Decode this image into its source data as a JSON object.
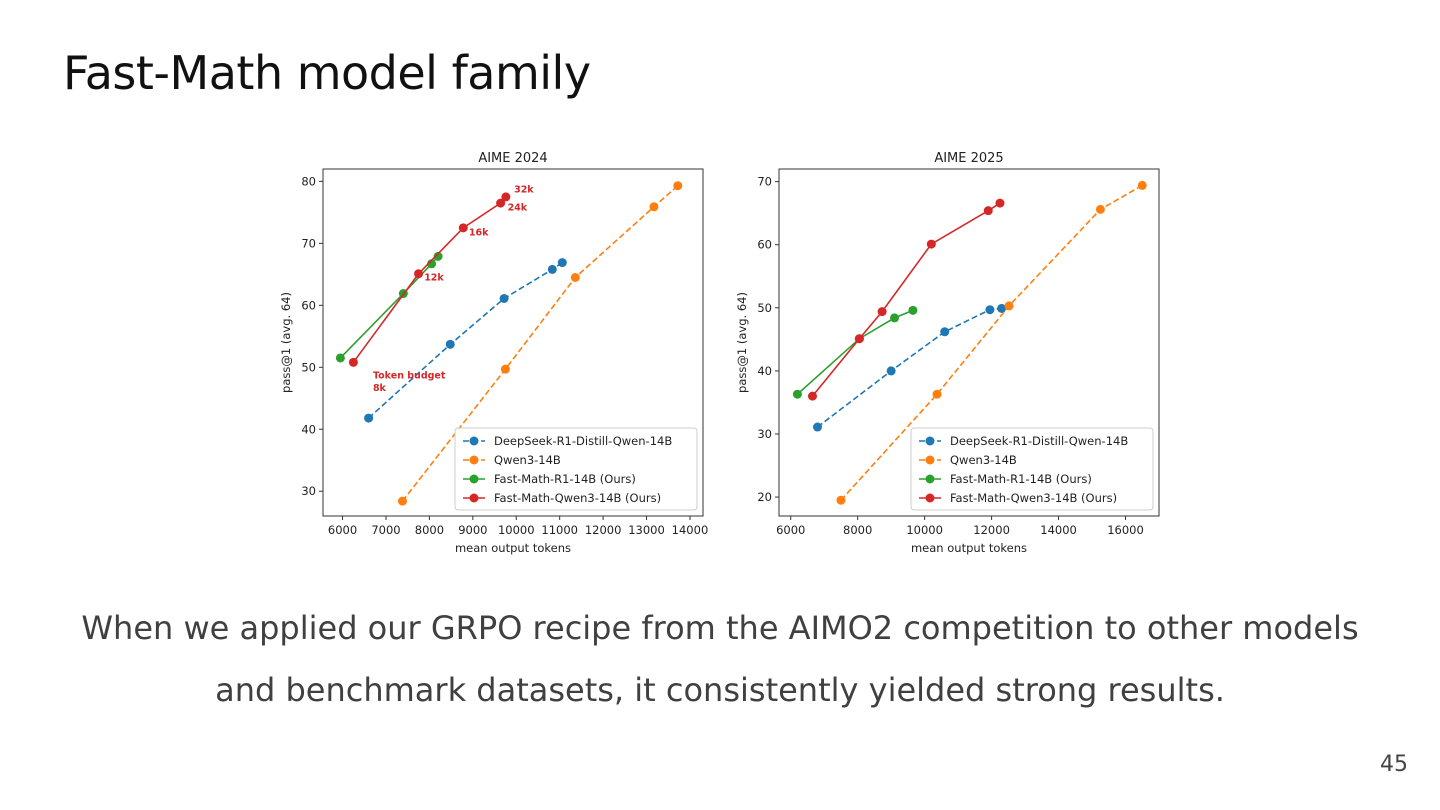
{
  "slide": {
    "title": "Fast-Math model family",
    "caption_lines": [
      "When we applied our GRPO recipe from the AIMO2 competition to other models",
      "and benchmark datasets, it consistently yielded strong results."
    ],
    "page_number": "45"
  },
  "colors": {
    "blue": "#1f77b4",
    "orange": "#ff7f0e",
    "green": "#2ca02c",
    "red": "#d62728"
  },
  "chart_data": [
    {
      "type": "line",
      "title": "AIME 2024",
      "xlabel": "mean output tokens",
      "ylabel": "pass@1 (avg. 64)",
      "xlim": [
        5550,
        14300
      ],
      "ylim": [
        26,
        82
      ],
      "xticks": [
        6000,
        7000,
        8000,
        9000,
        10000,
        11000,
        12000,
        13000,
        14000
      ],
      "yticks": [
        30,
        40,
        50,
        60,
        70,
        80
      ],
      "grid": false,
      "legend": "bottom-right",
      "series": [
        {
          "name": "DeepSeek-R1-Distill-Qwen-14B",
          "color": "blue",
          "style": "dashed",
          "x": [
            6600,
            8480,
            9720,
            10830,
            11060
          ],
          "y": [
            41.8,
            53.7,
            61.1,
            65.8,
            66.9
          ]
        },
        {
          "name": "Qwen3-14B",
          "color": "orange",
          "style": "dashed",
          "x": [
            7380,
            9750,
            11360,
            13170,
            13720
          ],
          "y": [
            28.4,
            49.7,
            64.5,
            75.9,
            79.3
          ]
        },
        {
          "name": "Fast-Math-R1-14B (Ours)",
          "color": "green",
          "style": "solid",
          "x": [
            5950,
            7400,
            8050,
            8200
          ],
          "y": [
            51.5,
            61.9,
            66.7,
            67.9
          ]
        },
        {
          "name": "Fast-Math-Qwen3-14B (Ours)",
          "color": "red",
          "style": "solid",
          "x": [
            6250,
            7750,
            8780,
            9640,
            9760
          ],
          "y": [
            50.8,
            65.1,
            72.5,
            76.5,
            77.5
          ]
        }
      ],
      "annotations": [
        {
          "text": "Token budget",
          "x": 6700,
          "y": 48.2
        },
        {
          "text": "8k",
          "x": 6700,
          "y": 46.2
        },
        {
          "text": "12k",
          "x": 7880,
          "y": 64.0
        },
        {
          "text": "16k",
          "x": 8910,
          "y": 71.3
        },
        {
          "text": "24k",
          "x": 9800,
          "y": 75.3
        },
        {
          "text": "32k",
          "x": 9950,
          "y": 78.2
        }
      ]
    },
    {
      "type": "line",
      "title": "AIME 2025",
      "xlabel": "mean output tokens",
      "ylabel": "pass@1 (avg. 64)",
      "xlim": [
        5650,
        17000
      ],
      "ylim": [
        17,
        72
      ],
      "xticks": [
        6000,
        8000,
        10000,
        12000,
        14000,
        16000
      ],
      "yticks": [
        20,
        30,
        40,
        50,
        60,
        70
      ],
      "grid": false,
      "legend": "bottom-right",
      "series": [
        {
          "name": "DeepSeek-R1-Distill-Qwen-14B",
          "color": "blue",
          "style": "dashed",
          "x": [
            6800,
            9000,
            10600,
            11950,
            12300
          ],
          "y": [
            31.1,
            40.0,
            46.2,
            49.7,
            49.9
          ]
        },
        {
          "name": "Qwen3-14B",
          "color": "orange",
          "style": "dashed",
          "x": [
            7500,
            10370,
            12520,
            15250,
            16500
          ],
          "y": [
            19.5,
            36.3,
            50.3,
            65.6,
            69.4
          ]
        },
        {
          "name": "Fast-Math-R1-14B (Ours)",
          "color": "green",
          "style": "solid",
          "x": [
            6200,
            8050,
            9100,
            9650
          ],
          "y": [
            36.3,
            45.1,
            48.4,
            49.6
          ]
        },
        {
          "name": "Fast-Math-Qwen3-14B (Ours)",
          "color": "red",
          "style": "solid",
          "x": [
            6650,
            8050,
            8730,
            10200,
            11900,
            12250
          ],
          "y": [
            36.0,
            45.1,
            49.4,
            60.1,
            65.4,
            66.6
          ]
        }
      ],
      "annotations": []
    }
  ]
}
